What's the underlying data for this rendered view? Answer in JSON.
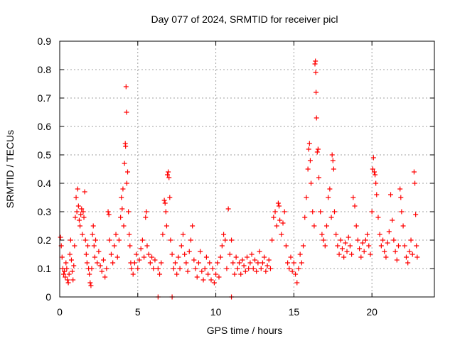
{
  "chart_data": {
    "type": "scatter",
    "title": "Day 077 of 2024, SRMTID for receiver picl",
    "xlabel": "GPS time / hours",
    "ylabel": "SRMTID / TECUs",
    "xlim": [
      0,
      24
    ],
    "ylim": [
      0,
      0.9
    ],
    "xticks": [
      0,
      5,
      10,
      15,
      20
    ],
    "yticks": [
      0,
      0.1,
      0.2,
      0.3,
      0.4,
      0.5,
      0.6,
      0.7,
      0.8,
      0.9
    ],
    "xtick_labels": [
      "0",
      "5",
      "10",
      "15",
      "20"
    ],
    "ytick_labels": [
      "0",
      "0.1",
      "0.2",
      "0.3",
      "0.4",
      "0.5",
      "0.6",
      "0.7",
      "0.8",
      "0.9"
    ],
    "grid": true,
    "marker": "plus",
    "color": "#ff0000",
    "series": [
      {
        "name": "SRMTID",
        "points": [
          [
            0.05,
            0.21
          ],
          [
            0.1,
            0.18
          ],
          [
            0.15,
            0.14
          ],
          [
            0.2,
            0.1
          ],
          [
            0.25,
            0.08
          ],
          [
            0.3,
            0.09
          ],
          [
            0.35,
            0.07
          ],
          [
            0.4,
            0.12
          ],
          [
            0.45,
            0.1
          ],
          [
            0.5,
            0.06
          ],
          [
            0.55,
            0.05
          ],
          [
            0.6,
            0.08
          ],
          [
            0.65,
            0.15
          ],
          [
            0.7,
            0.2
          ],
          [
            0.75,
            0.13
          ],
          [
            0.8,
            0.09
          ],
          [
            0.85,
            0.06
          ],
          [
            0.9,
            0.11
          ],
          [
            0.95,
            0.18
          ],
          [
            1.0,
            0.28
          ],
          [
            1.05,
            0.35
          ],
          [
            1.1,
            0.3
          ],
          [
            1.15,
            0.38
          ],
          [
            1.2,
            0.32
          ],
          [
            1.25,
            0.27
          ],
          [
            1.3,
            0.25
          ],
          [
            1.35,
            0.29
          ],
          [
            1.4,
            0.31
          ],
          [
            1.45,
            0.22
          ],
          [
            1.5,
            0.3
          ],
          [
            1.55,
            0.28
          ],
          [
            1.6,
            0.37
          ],
          [
            1.65,
            0.2
          ],
          [
            1.7,
            0.15
          ],
          [
            1.75,
            0.12
          ],
          [
            1.8,
            0.18
          ],
          [
            1.85,
            0.1
          ],
          [
            1.9,
            0.08
          ],
          [
            1.95,
            0.05
          ],
          [
            2.0,
            0.04
          ],
          [
            2.05,
            0.1
          ],
          [
            2.1,
            0.22
          ],
          [
            2.15,
            0.25
          ],
          [
            2.2,
            0.18
          ],
          [
            2.25,
            0.14
          ],
          [
            2.3,
            0.2
          ],
          [
            2.4,
            0.12
          ],
          [
            2.5,
            0.16
          ],
          [
            2.6,
            0.11
          ],
          [
            2.7,
            0.09
          ],
          [
            2.8,
            0.13
          ],
          [
            2.9,
            0.07
          ],
          [
            3.0,
            0.1
          ],
          [
            3.1,
            0.3
          ],
          [
            3.15,
            0.29
          ],
          [
            3.2,
            0.2
          ],
          [
            3.3,
            0.15
          ],
          [
            3.4,
            0.12
          ],
          [
            3.5,
            0.18
          ],
          [
            3.6,
            0.22
          ],
          [
            3.7,
            0.14
          ],
          [
            3.8,
            0.2
          ],
          [
            3.9,
            0.28
          ],
          [
            3.95,
            0.35
          ],
          [
            4.0,
            0.31
          ],
          [
            4.05,
            0.38
          ],
          [
            4.1,
            0.25
          ],
          [
            4.15,
            0.47
          ],
          [
            4.2,
            0.54
          ],
          [
            4.22,
            0.53
          ],
          [
            4.25,
            0.74
          ],
          [
            4.28,
            0.65
          ],
          [
            4.3,
            0.4
          ],
          [
            4.35,
            0.44
          ],
          [
            4.4,
            0.3
          ],
          [
            4.45,
            0.22
          ],
          [
            4.5,
            0.18
          ],
          [
            4.55,
            0.12
          ],
          [
            4.6,
            0.1
          ],
          [
            4.7,
            0.08
          ],
          [
            4.8,
            0.12
          ],
          [
            4.9,
            0.15
          ],
          [
            5.0,
            0.1
          ],
          [
            5.1,
            0.13
          ],
          [
            5.2,
            0.17
          ],
          [
            5.3,
            0.2
          ],
          [
            5.4,
            0.14
          ],
          [
            5.5,
            0.28
          ],
          [
            5.55,
            0.3
          ],
          [
            5.6,
            0.18
          ],
          [
            5.7,
            0.15
          ],
          [
            5.8,
            0.12
          ],
          [
            5.9,
            0.14
          ],
          [
            6.0,
            0.1
          ],
          [
            6.1,
            0.13
          ],
          [
            6.3,
            0.1
          ],
          [
            6.4,
            0.08
          ],
          [
            6.5,
            0.12
          ],
          [
            6.6,
            0.22
          ],
          [
            6.7,
            0.34
          ],
          [
            6.75,
            0.33
          ],
          [
            6.8,
            0.3
          ],
          [
            6.85,
            0.25
          ],
          [
            6.9,
            0.43
          ],
          [
            6.95,
            0.44
          ],
          [
            7.0,
            0.42
          ],
          [
            7.05,
            0.35
          ],
          [
            7.1,
            0.2
          ],
          [
            7.2,
            0.15
          ],
          [
            7.3,
            0.1
          ],
          [
            7.4,
            0.12
          ],
          [
            7.5,
            0.08
          ],
          [
            7.6,
            0.14
          ],
          [
            7.7,
            0.1
          ],
          [
            7.8,
            0.18
          ],
          [
            7.9,
            0.22
          ],
          [
            8.0,
            0.15
          ],
          [
            8.1,
            0.12
          ],
          [
            8.2,
            0.09
          ],
          [
            8.3,
            0.16
          ],
          [
            8.4,
            0.2
          ],
          [
            8.5,
            0.25
          ],
          [
            8.6,
            0.13
          ],
          [
            8.7,
            0.1
          ],
          [
            8.8,
            0.07
          ],
          [
            8.9,
            0.12
          ],
          [
            9.0,
            0.16
          ],
          [
            9.1,
            0.09
          ],
          [
            9.2,
            0.06
          ],
          [
            9.3,
            0.1
          ],
          [
            9.4,
            0.14
          ],
          [
            9.5,
            0.08
          ],
          [
            9.6,
            0.12
          ],
          [
            9.7,
            0.06
          ],
          [
            9.8,
            0.1
          ],
          [
            9.9,
            0.05
          ],
          [
            10.0,
            0.08
          ],
          [
            10.1,
            0.12
          ],
          [
            10.2,
            0.07
          ],
          [
            10.3,
            0.14
          ],
          [
            10.4,
            0.18
          ],
          [
            10.5,
            0.22
          ],
          [
            10.6,
            0.2
          ],
          [
            10.7,
            0.1
          ],
          [
            10.8,
            0.31
          ],
          [
            10.9,
            0.15
          ],
          [
            11.0,
            0.2
          ],
          [
            11.1,
            0.12
          ],
          [
            11.2,
            0.08
          ],
          [
            11.3,
            0.14
          ],
          [
            11.4,
            0.1
          ],
          [
            11.5,
            0.12
          ],
          [
            11.6,
            0.08
          ],
          [
            11.7,
            0.13
          ],
          [
            11.8,
            0.11
          ],
          [
            11.9,
            0.09
          ],
          [
            12.0,
            0.14
          ],
          [
            12.1,
            0.1
          ],
          [
            12.2,
            0.12
          ],
          [
            12.3,
            0.15
          ],
          [
            12.4,
            0.1
          ],
          [
            12.5,
            0.13
          ],
          [
            12.6,
            0.09
          ],
          [
            12.7,
            0.12
          ],
          [
            12.8,
            0.16
          ],
          [
            12.9,
            0.1
          ],
          [
            13.0,
            0.12
          ],
          [
            13.1,
            0.14
          ],
          [
            13.2,
            0.09
          ],
          [
            13.3,
            0.11
          ],
          [
            13.4,
            0.13
          ],
          [
            13.5,
            0.1
          ],
          [
            13.6,
            0.2
          ],
          [
            13.7,
            0.28
          ],
          [
            13.8,
            0.3
          ],
          [
            13.9,
            0.25
          ],
          [
            14.0,
            0.33
          ],
          [
            14.05,
            0.32
          ],
          [
            14.1,
            0.27
          ],
          [
            14.2,
            0.22
          ],
          [
            14.3,
            0.26
          ],
          [
            14.4,
            0.3
          ],
          [
            14.5,
            0.18
          ],
          [
            14.6,
            0.12
          ],
          [
            14.7,
            0.1
          ],
          [
            14.8,
            0.14
          ],
          [
            14.9,
            0.09
          ],
          [
            15.0,
            0.12
          ],
          [
            15.1,
            0.08
          ],
          [
            15.2,
            0.05
          ],
          [
            15.3,
            0.1
          ],
          [
            15.4,
            0.15
          ],
          [
            15.5,
            0.12
          ],
          [
            15.6,
            0.18
          ],
          [
            15.7,
            0.28
          ],
          [
            15.8,
            0.35
          ],
          [
            15.9,
            0.45
          ],
          [
            15.95,
            0.52
          ],
          [
            16.0,
            0.54
          ],
          [
            16.05,
            0.48
          ],
          [
            16.1,
            0.4
          ],
          [
            16.2,
            0.3
          ],
          [
            16.3,
            0.25
          ],
          [
            16.35,
            0.82
          ],
          [
            16.38,
            0.83
          ],
          [
            16.4,
            0.79
          ],
          [
            16.42,
            0.72
          ],
          [
            16.45,
            0.63
          ],
          [
            16.5,
            0.51
          ],
          [
            16.55,
            0.52
          ],
          [
            16.6,
            0.42
          ],
          [
            16.7,
            0.3
          ],
          [
            16.8,
            0.22
          ],
          [
            16.9,
            0.2
          ],
          [
            17.0,
            0.18
          ],
          [
            17.1,
            0.25
          ],
          [
            17.2,
            0.35
          ],
          [
            17.3,
            0.38
          ],
          [
            17.4,
            0.28
          ],
          [
            17.45,
            0.5
          ],
          [
            17.5,
            0.48
          ],
          [
            17.55,
            0.45
          ],
          [
            17.6,
            0.3
          ],
          [
            17.7,
            0.22
          ],
          [
            17.8,
            0.18
          ],
          [
            17.9,
            0.15
          ],
          [
            18.0,
            0.2
          ],
          [
            18.1,
            0.17
          ],
          [
            18.2,
            0.14
          ],
          [
            18.3,
            0.19
          ],
          [
            18.4,
            0.16
          ],
          [
            18.5,
            0.21
          ],
          [
            18.6,
            0.18
          ],
          [
            18.7,
            0.15
          ],
          [
            18.8,
            0.35
          ],
          [
            18.9,
            0.32
          ],
          [
            19.0,
            0.25
          ],
          [
            19.1,
            0.2
          ],
          [
            19.2,
            0.17
          ],
          [
            19.3,
            0.14
          ],
          [
            19.4,
            0.19
          ],
          [
            19.5,
            0.16
          ],
          [
            19.6,
            0.2
          ],
          [
            19.7,
            0.22
          ],
          [
            19.8,
            0.18
          ],
          [
            19.9,
            0.15
          ],
          [
            20.0,
            0.3
          ],
          [
            20.05,
            0.45
          ],
          [
            20.1,
            0.49
          ],
          [
            20.15,
            0.44
          ],
          [
            20.2,
            0.43
          ],
          [
            20.25,
            0.4
          ],
          [
            20.3,
            0.36
          ],
          [
            20.4,
            0.28
          ],
          [
            20.5,
            0.22
          ],
          [
            20.6,
            0.18
          ],
          [
            20.7,
            0.2
          ],
          [
            20.8,
            0.16
          ],
          [
            20.9,
            0.14
          ],
          [
            21.0,
            0.19
          ],
          [
            21.1,
            0.23
          ],
          [
            21.2,
            0.36
          ],
          [
            21.3,
            0.27
          ],
          [
            21.4,
            0.2
          ],
          [
            21.5,
            0.16
          ],
          [
            21.6,
            0.13
          ],
          [
            21.7,
            0.18
          ],
          [
            21.8,
            0.38
          ],
          [
            21.85,
            0.35
          ],
          [
            21.9,
            0.3
          ],
          [
            22.0,
            0.25
          ],
          [
            22.1,
            0.18
          ],
          [
            22.2,
            0.14
          ],
          [
            22.3,
            0.12
          ],
          [
            22.4,
            0.16
          ],
          [
            22.5,
            0.2
          ],
          [
            22.6,
            0.15
          ],
          [
            22.7,
            0.44
          ],
          [
            22.75,
            0.4
          ],
          [
            22.8,
            0.29
          ],
          [
            22.85,
            0.18
          ],
          [
            22.9,
            0.14
          ],
          [
            6.3,
            0.0
          ],
          [
            7.2,
            0.0
          ],
          [
            11.0,
            0.0
          ]
        ]
      }
    ]
  }
}
